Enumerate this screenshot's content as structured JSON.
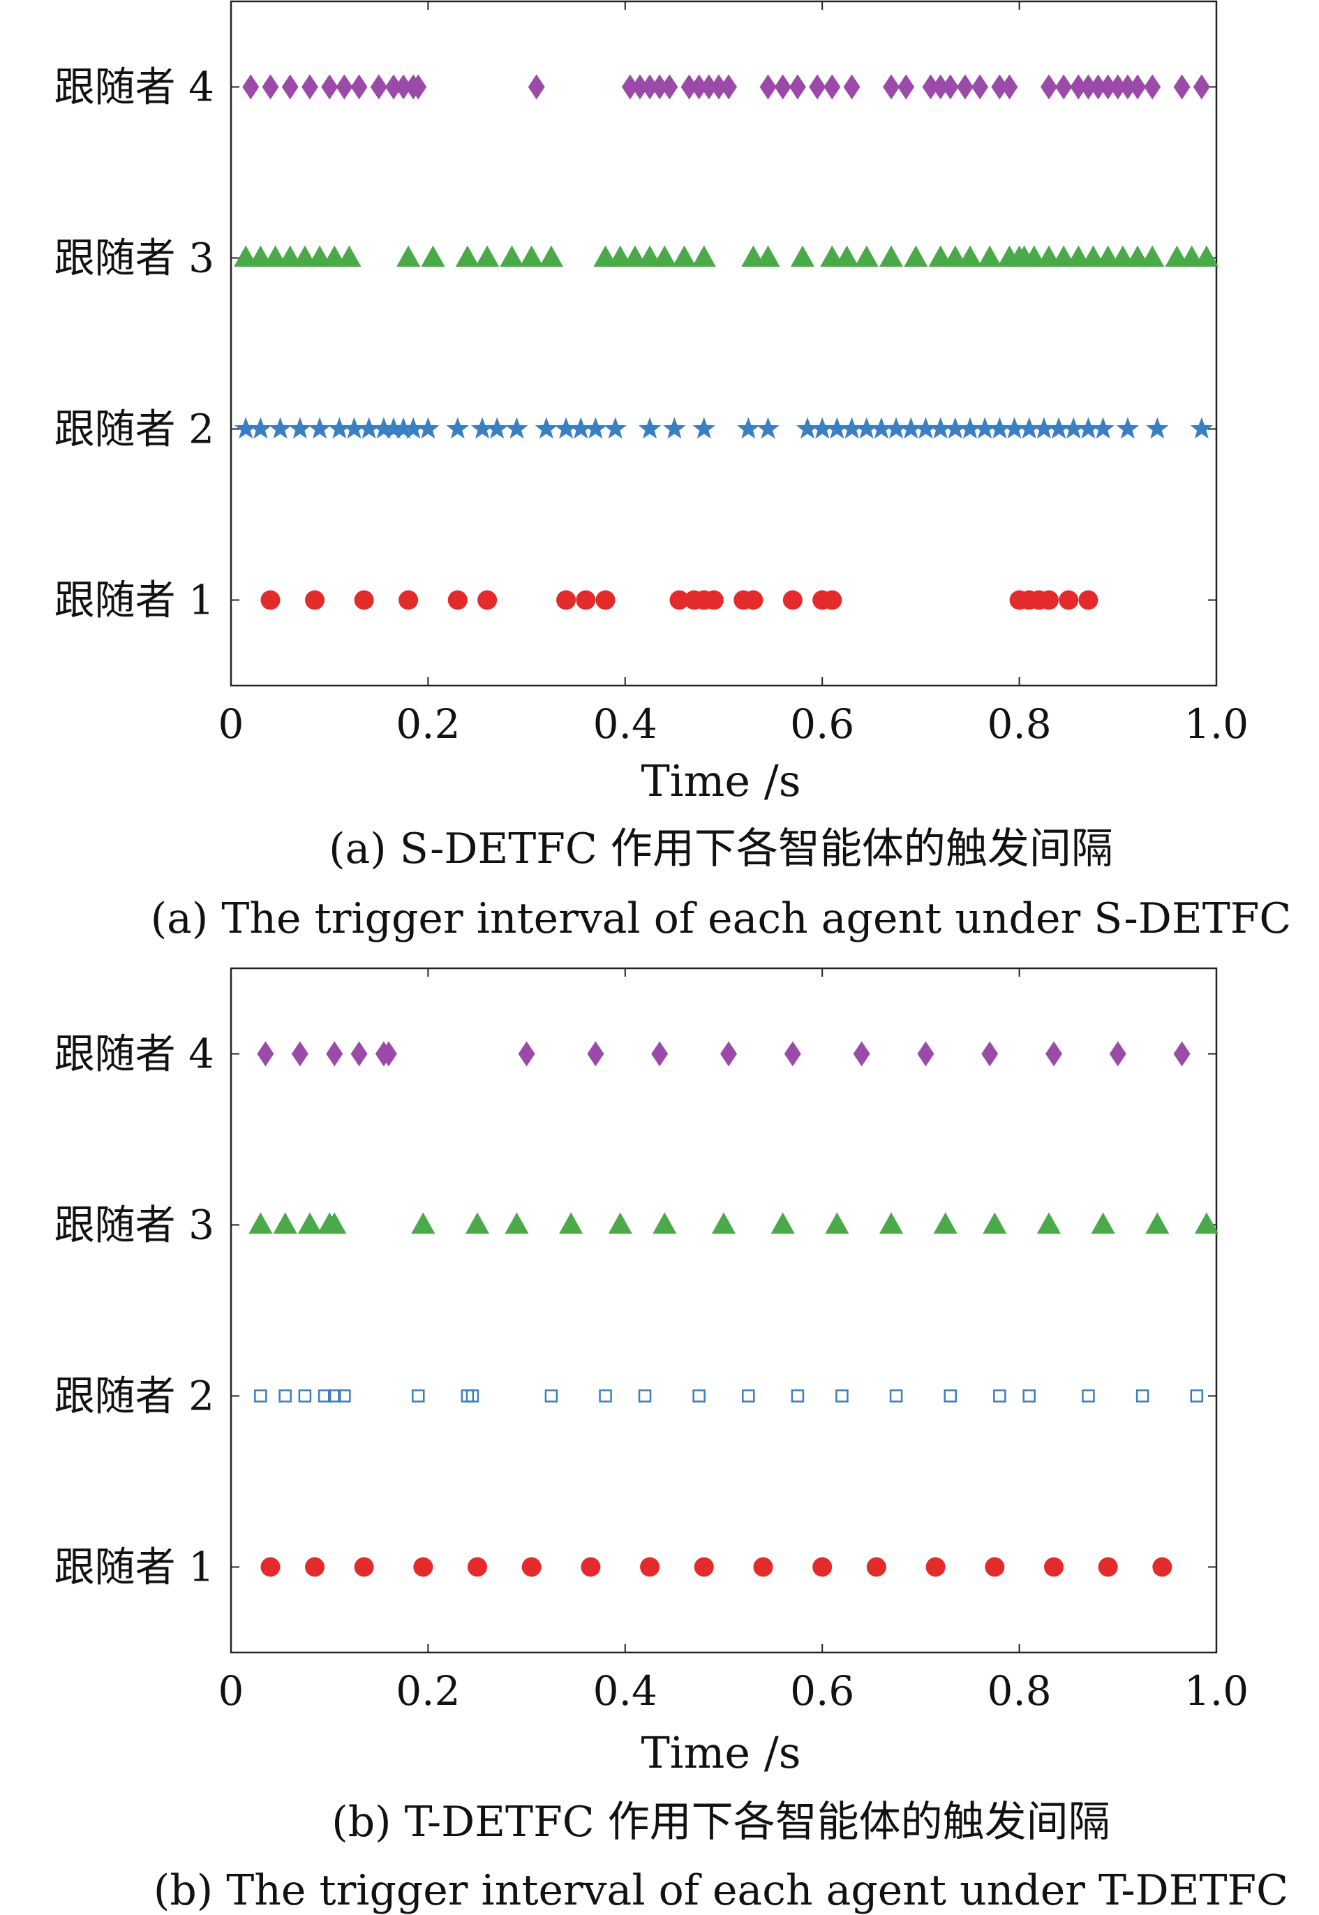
{
  "chart_data": [
    {
      "type": "scatter",
      "panel": "a",
      "caption_cn": "(a) S-DETFC 作用下各智能体的触发间隔",
      "caption_en": "(a) The trigger interval of each agent under S-DETFC",
      "xlabel": "Time /s",
      "xlim": [
        0,
        1.0
      ],
      "ylim": [
        0.5,
        4.5
      ],
      "xticks": [
        {
          "value": 0,
          "label": "0"
        },
        {
          "value": 0.2,
          "label": "0.2"
        },
        {
          "value": 0.4,
          "label": "0.4"
        },
        {
          "value": 0.6,
          "label": "0.6"
        },
        {
          "value": 0.8,
          "label": "0.8"
        },
        {
          "value": 1.0,
          "label": "1.0"
        }
      ],
      "yticks": [
        {
          "value": 4,
          "label": "跟随者 4"
        },
        {
          "value": 3,
          "label": "跟随者 3"
        },
        {
          "value": 2,
          "label": "跟随者 2"
        },
        {
          "value": 1,
          "label": "跟随者 1"
        }
      ],
      "series": [
        {
          "level": 4,
          "marker": "diamond",
          "color": "#9b4aaa",
          "x": [
            0.02,
            0.04,
            0.06,
            0.08,
            0.1,
            0.115,
            0.13,
            0.15,
            0.165,
            0.175,
            0.185,
            0.19,
            0.31,
            0.405,
            0.415,
            0.425,
            0.435,
            0.445,
            0.465,
            0.475,
            0.485,
            0.495,
            0.505,
            0.545,
            0.56,
            0.575,
            0.595,
            0.61,
            0.63,
            0.67,
            0.685,
            0.71,
            0.72,
            0.73,
            0.745,
            0.76,
            0.78,
            0.79,
            0.83,
            0.845,
            0.86,
            0.87,
            0.88,
            0.89,
            0.9,
            0.91,
            0.92,
            0.935,
            0.965,
            0.985
          ]
        },
        {
          "level": 3,
          "marker": "triangle",
          "color": "#4aaa4a",
          "x": [
            0.015,
            0.03,
            0.045,
            0.06,
            0.075,
            0.09,
            0.105,
            0.12,
            0.18,
            0.205,
            0.24,
            0.26,
            0.285,
            0.305,
            0.325,
            0.38,
            0.395,
            0.41,
            0.425,
            0.44,
            0.46,
            0.48,
            0.53,
            0.545,
            0.58,
            0.61,
            0.625,
            0.645,
            0.67,
            0.695,
            0.72,
            0.735,
            0.75,
            0.77,
            0.79,
            0.805,
            0.8,
            0.815,
            0.83,
            0.845,
            0.86,
            0.875,
            0.89,
            0.905,
            0.92,
            0.935,
            0.96,
            0.975,
            0.99
          ]
        },
        {
          "level": 2,
          "marker": "star",
          "color": "#3a7fc1",
          "x": [
            0.015,
            0.03,
            0.05,
            0.07,
            0.09,
            0.11,
            0.125,
            0.14,
            0.155,
            0.165,
            0.175,
            0.185,
            0.2,
            0.23,
            0.255,
            0.27,
            0.29,
            0.32,
            0.34,
            0.355,
            0.37,
            0.39,
            0.425,
            0.45,
            0.48,
            0.525,
            0.545,
            0.585,
            0.6,
            0.615,
            0.63,
            0.645,
            0.66,
            0.675,
            0.69,
            0.705,
            0.72,
            0.735,
            0.75,
            0.765,
            0.78,
            0.795,
            0.81,
            0.825,
            0.84,
            0.855,
            0.87,
            0.885,
            0.91,
            0.94,
            0.985
          ]
        },
        {
          "level": 1,
          "marker": "circle",
          "color": "#e32b2b",
          "x": [
            0.04,
            0.085,
            0.135,
            0.18,
            0.23,
            0.26,
            0.34,
            0.36,
            0.38,
            0.455,
            0.47,
            0.48,
            0.49,
            0.52,
            0.53,
            0.57,
            0.6,
            0.61,
            0.8,
            0.81,
            0.82,
            0.83,
            0.85,
            0.87
          ]
        }
      ]
    },
    {
      "type": "scatter",
      "panel": "b",
      "caption_cn": "(b) T-DETFC 作用下各智能体的触发间隔",
      "caption_en": "(b) The trigger interval of each agent under T-DETFC",
      "xlabel": "Time /s",
      "xlim": [
        0,
        1.0
      ],
      "ylim": [
        0.5,
        4.5
      ],
      "xticks": [
        {
          "value": 0,
          "label": "0"
        },
        {
          "value": 0.2,
          "label": "0.2"
        },
        {
          "value": 0.4,
          "label": "0.4"
        },
        {
          "value": 0.6,
          "label": "0.6"
        },
        {
          "value": 0.8,
          "label": "0.8"
        },
        {
          "value": 1.0,
          "label": "1.0"
        }
      ],
      "yticks": [
        {
          "value": 4,
          "label": "跟随者 4"
        },
        {
          "value": 3,
          "label": "跟随者 3"
        },
        {
          "value": 2,
          "label": "跟随者 2"
        },
        {
          "value": 1,
          "label": "跟随者 1"
        }
      ],
      "series": [
        {
          "level": 4,
          "marker": "diamond",
          "color": "#9b4aaa",
          "x": [
            0.035,
            0.07,
            0.105,
            0.13,
            0.155,
            0.16,
            0.3,
            0.37,
            0.435,
            0.505,
            0.57,
            0.64,
            0.705,
            0.77,
            0.835,
            0.9,
            0.965
          ]
        },
        {
          "level": 3,
          "marker": "triangle",
          "color": "#4aaa4a",
          "x": [
            0.03,
            0.055,
            0.08,
            0.1,
            0.105,
            0.195,
            0.25,
            0.29,
            0.345,
            0.395,
            0.44,
            0.5,
            0.56,
            0.615,
            0.67,
            0.725,
            0.775,
            0.83,
            0.885,
            0.94,
            0.99
          ]
        },
        {
          "level": 2,
          "marker": "square",
          "color": "#3a7fc1",
          "x": [
            0.03,
            0.055,
            0.075,
            0.095,
            0.105,
            0.115,
            0.19,
            0.24,
            0.245,
            0.325,
            0.38,
            0.42,
            0.475,
            0.525,
            0.575,
            0.62,
            0.675,
            0.73,
            0.78,
            0.81,
            0.87,
            0.925,
            0.98
          ]
        },
        {
          "level": 1,
          "marker": "circle",
          "color": "#e32b2b",
          "x": [
            0.04,
            0.085,
            0.135,
            0.195,
            0.25,
            0.305,
            0.365,
            0.425,
            0.48,
            0.54,
            0.6,
            0.655,
            0.715,
            0.775,
            0.835,
            0.89,
            0.945
          ]
        }
      ]
    }
  ]
}
